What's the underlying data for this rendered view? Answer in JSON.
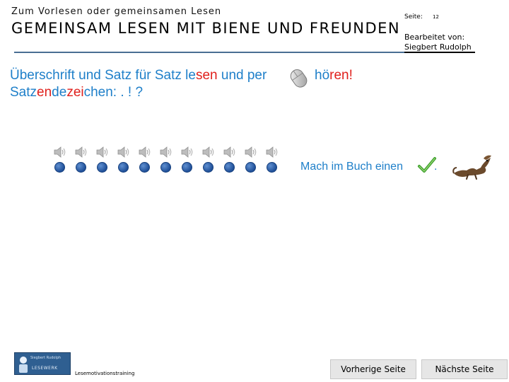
{
  "header": {
    "pretitle": "Zum Vorlesen oder gemeinsamen Lesen",
    "title": "GEMEINSAM LESEN MIT BIENE UND FREUNDEN",
    "page_label": "Seite:",
    "page_number": "12",
    "editor_label": "Bearbeitet von:",
    "editor_name": "Siegbert Rudolph"
  },
  "instruction": {
    "line1_parts": [
      "Überschrift und Satz für Satz le",
      "sen",
      " und per"
    ],
    "line1_end_parts": [
      "hö",
      "ren!"
    ],
    "line2_parts": [
      "Satz",
      "en",
      "de",
      "zei",
      "chen: . ! ?"
    ]
  },
  "audio": {
    "count": 11
  },
  "book_instruction": {
    "text": "Mach im Buch einen",
    "period": "."
  },
  "footer": {
    "logo_top": "Siegbert Rudolph",
    "logo_bottom": "LESEWERK",
    "caption": "Lesemotivationstraining",
    "prev_label": "Vorherige Seite",
    "next_label": "Nächste Seite"
  },
  "colors": {
    "accent_blue": "#1e7fc9",
    "accent_red": "#e0201c",
    "rule_blue": "#4a6e93",
    "dot_blue": "#1f4f98"
  },
  "icons": [
    "speaker-icon",
    "play-dot-icon",
    "mouse-icon",
    "checkmark-icon",
    "squirrel-image"
  ]
}
